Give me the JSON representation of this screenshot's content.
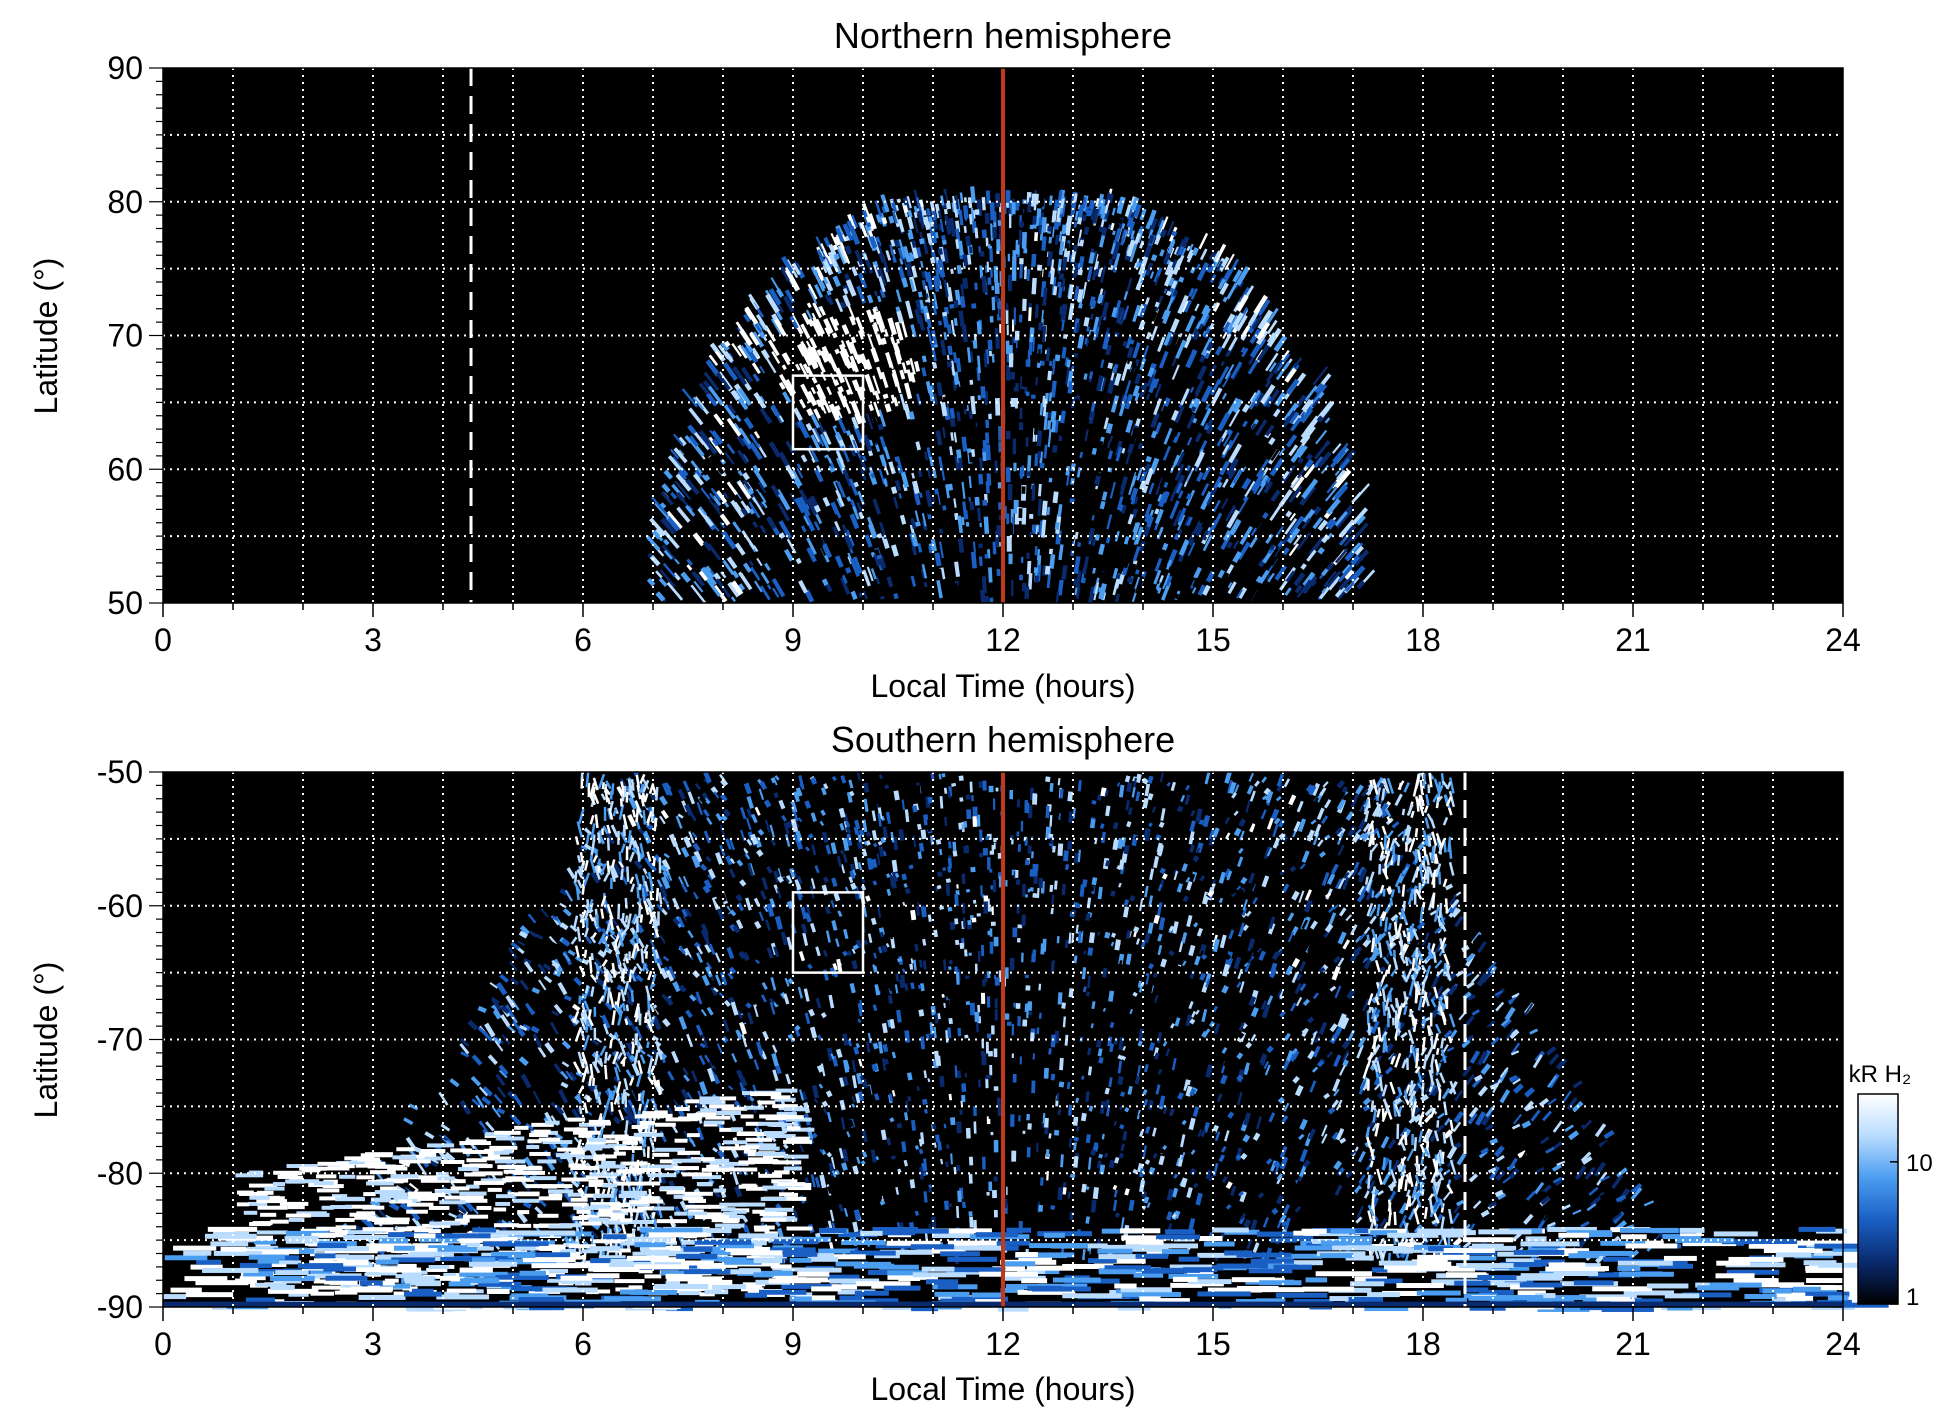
{
  "colors": {
    "background": "#000000",
    "grid": "#ffffff",
    "noon_line": "#c0391b",
    "colormap": [
      "#000000",
      "#0a2a6e",
      "#1a5fc4",
      "#4b9df0",
      "#b9dcff",
      "#ffffff"
    ]
  },
  "chart_data": [
    {
      "type": "heatmap",
      "title": "Northern hemisphere",
      "xlabel": "Local Time (hours)",
      "ylabel": "Latitude (°)",
      "xlim": [
        0,
        24
      ],
      "ylim": [
        50,
        90
      ],
      "xticks": [
        "0",
        "3",
        "6",
        "9",
        "12",
        "15",
        "18",
        "21",
        "24"
      ],
      "yticks": [
        "50",
        "60",
        "70",
        "80",
        "90"
      ],
      "grid": true,
      "noon_line_x": 12,
      "dashed_line_x": 4.4,
      "box": {
        "x": [
          9,
          10
        ],
        "y": [
          61.5,
          67
        ]
      },
      "coverage": {
        "x": [
          7,
          17.2
        ],
        "y": [
          50,
          80
        ]
      },
      "bright_spot": {
        "x": 9.8,
        "y": 67.5
      }
    },
    {
      "type": "heatmap",
      "title": "Southern hemisphere",
      "xlabel": "Local Time (hours)",
      "ylabel": "Latitude (°)",
      "xlim": [
        0,
        24
      ],
      "ylim": [
        -90,
        -50
      ],
      "xticks": [
        "0",
        "3",
        "6",
        "9",
        "12",
        "15",
        "18",
        "21",
        "24"
      ],
      "yticks": [
        "-50",
        "-60",
        "-70",
        "-80",
        "-90"
      ],
      "grid": true,
      "noon_line_x": 12,
      "dashed_line_x": 18.6,
      "box": {
        "x": [
          9,
          10
        ],
        "y": [
          -65,
          -59
        ]
      },
      "colorbar": {
        "label": "kR H₂",
        "scale": "log",
        "ticks": [
          "1",
          "10"
        ],
        "range": [
          1,
          30
        ]
      }
    }
  ]
}
